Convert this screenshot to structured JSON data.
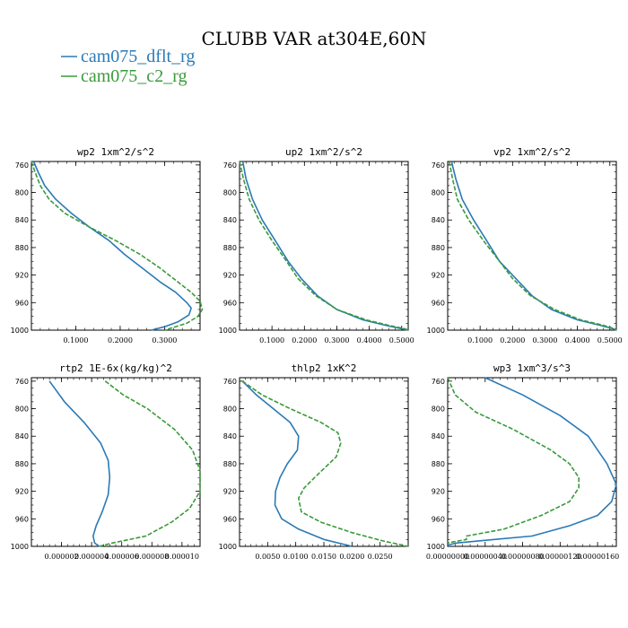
{
  "figure_title": "CLUBB VAR at304E,60N",
  "legend": [
    {
      "label": "cam075_dflt_rg",
      "color": "#2a7ab6",
      "dash": "solid"
    },
    {
      "label": "cam075_c2_rg",
      "color": "#3a9a3a",
      "dash": "dashed"
    }
  ],
  "chart_data": [
    {
      "type": "line",
      "title": "wp2  1xm^2/s^2",
      "ylabel": "",
      "xlabel": "",
      "yinverted": true,
      "ylim": [
        755,
        1000
      ],
      "xlim": [
        0.0,
        0.38
      ],
      "yticks": [
        760,
        800,
        840,
        880,
        920,
        960,
        1000
      ],
      "xticks": [
        0.1,
        0.2,
        0.3
      ],
      "xtick_labels": [
        "0.1000",
        "0.2000",
        "0.3000"
      ],
      "series": [
        {
          "name": "cam075_dflt_rg",
          "points": [
            [
              0.005,
              755
            ],
            [
              0.015,
              770
            ],
            [
              0.03,
              790
            ],
            [
              0.055,
              810
            ],
            [
              0.09,
              830
            ],
            [
              0.13,
              850
            ],
            [
              0.175,
              870
            ],
            [
              0.21,
              890
            ],
            [
              0.25,
              910
            ],
            [
              0.29,
              930
            ],
            [
              0.325,
              945
            ],
            [
              0.35,
              960
            ],
            [
              0.36,
              968
            ],
            [
              0.355,
              978
            ],
            [
              0.33,
              988
            ],
            [
              0.3,
              995
            ],
            [
              0.27,
              1000
            ]
          ]
        },
        {
          "name": "cam075_c2_rg",
          "points": [
            [
              0.0,
              755
            ],
            [
              0.008,
              770
            ],
            [
              0.02,
              790
            ],
            [
              0.04,
              810
            ],
            [
              0.075,
              830
            ],
            [
              0.13,
              850
            ],
            [
              0.19,
              870
            ],
            [
              0.245,
              890
            ],
            [
              0.29,
              910
            ],
            [
              0.33,
              930
            ],
            [
              0.36,
              945
            ],
            [
              0.38,
              958
            ],
            [
              0.385,
              970
            ],
            [
              0.375,
              980
            ],
            [
              0.35,
              990
            ],
            [
              0.3,
              1000
            ]
          ]
        }
      ]
    },
    {
      "type": "line",
      "title": "up2  1xm^2/s^2",
      "ylabel": "",
      "xlabel": "",
      "yinverted": true,
      "ylim": [
        755,
        1000
      ],
      "xlim": [
        0.0,
        0.52
      ],
      "yticks": [
        760,
        800,
        840,
        880,
        920,
        960,
        1000
      ],
      "xticks": [
        0.1,
        0.2,
        0.3,
        0.4,
        0.5
      ],
      "xtick_labels": [
        "0.1000",
        "0.2000",
        "0.3000",
        "0.4000",
        "0.5000"
      ],
      "series": [
        {
          "name": "cam075_dflt_rg",
          "points": [
            [
              0.01,
              755
            ],
            [
              0.02,
              780
            ],
            [
              0.04,
              810
            ],
            [
              0.07,
              840
            ],
            [
              0.11,
              870
            ],
            [
              0.15,
              900
            ],
            [
              0.19,
              925
            ],
            [
              0.24,
              950
            ],
            [
              0.3,
              970
            ],
            [
              0.38,
              985
            ],
            [
              0.45,
              993
            ],
            [
              0.5,
              998
            ],
            [
              0.52,
              1000
            ]
          ]
        },
        {
          "name": "cam075_c2_rg",
          "points": [
            [
              0.0,
              755
            ],
            [
              0.012,
              780
            ],
            [
              0.03,
              810
            ],
            [
              0.06,
              840
            ],
            [
              0.1,
              870
            ],
            [
              0.145,
              900
            ],
            [
              0.18,
              925
            ],
            [
              0.235,
              950
            ],
            [
              0.3,
              970
            ],
            [
              0.39,
              985
            ],
            [
              0.46,
              993
            ],
            [
              0.51,
              998
            ],
            [
              0.52,
              1000
            ]
          ]
        }
      ]
    },
    {
      "type": "line",
      "title": "vp2  1xm^2/s^2",
      "ylabel": "",
      "xlabel": "",
      "yinverted": true,
      "ylim": [
        755,
        1000
      ],
      "xlim": [
        0.0,
        0.52
      ],
      "yticks": [
        760,
        800,
        840,
        880,
        920,
        960,
        1000
      ],
      "xticks": [
        0.1,
        0.2,
        0.3,
        0.4,
        0.5
      ],
      "xtick_labels": [
        "0.1000",
        "0.2000",
        "0.3000",
        "0.4000",
        "0.5000"
      ],
      "series": [
        {
          "name": "cam075_dflt_rg",
          "points": [
            [
              0.012,
              755
            ],
            [
              0.025,
              780
            ],
            [
              0.045,
              810
            ],
            [
              0.08,
              840
            ],
            [
              0.12,
              870
            ],
            [
              0.16,
              900
            ],
            [
              0.21,
              925
            ],
            [
              0.26,
              950
            ],
            [
              0.32,
              970
            ],
            [
              0.4,
              985
            ],
            [
              0.47,
              993
            ],
            [
              0.51,
              998
            ],
            [
              0.52,
              1000
            ]
          ]
        },
        {
          "name": "cam075_c2_rg",
          "points": [
            [
              0.005,
              755
            ],
            [
              0.015,
              780
            ],
            [
              0.03,
              810
            ],
            [
              0.065,
              840
            ],
            [
              0.11,
              870
            ],
            [
              0.16,
              900
            ],
            [
              0.2,
              925
            ],
            [
              0.255,
              950
            ],
            [
              0.33,
              970
            ],
            [
              0.41,
              985
            ],
            [
              0.48,
              993
            ],
            [
              0.515,
              998
            ],
            [
              0.52,
              1000
            ]
          ]
        }
      ]
    },
    {
      "type": "line",
      "title": "rtp2  1E-6x(kg/kg)^2",
      "ylabel": "",
      "xlabel": "",
      "yinverted": true,
      "ylim": [
        755,
        1000
      ],
      "xlim": [
        0.0,
        1.12e-05
      ],
      "yticks": [
        760,
        800,
        840,
        880,
        920,
        960,
        1000
      ],
      "xticks": [
        2e-06,
        4e-06,
        6e-06,
        8e-06,
        1e-05
      ],
      "xtick_labels": [
        "0.000002",
        "0.000004",
        "0.000006",
        "0.000008",
        "0.000010"
      ],
      "series": [
        {
          "name": "cam075_dflt_rg",
          "points": [
            [
              1.2e-06,
              760
            ],
            [
              2.2e-06,
              790
            ],
            [
              3.5e-06,
              820
            ],
            [
              4.6e-06,
              850
            ],
            [
              5.1e-06,
              875
            ],
            [
              5.2e-06,
              900
            ],
            [
              5.1e-06,
              925
            ],
            [
              4.7e-06,
              950
            ],
            [
              4.3e-06,
              970
            ],
            [
              4.1e-06,
              985
            ],
            [
              4.2e-06,
              995
            ],
            [
              4.5e-06,
              1000
            ]
          ]
        },
        {
          "name": "cam075_c2_rg",
          "points": [
            [
              4.9e-06,
              760
            ],
            [
              6.1e-06,
              780
            ],
            [
              7.7e-06,
              800
            ],
            [
              9.5e-06,
              830
            ],
            [
              1.07e-05,
              860
            ],
            [
              1.12e-05,
              890
            ],
            [
              1.12e-05,
              920
            ],
            [
              1.05e-05,
              945
            ],
            [
              9.3e-06,
              965
            ],
            [
              7.6e-06,
              985
            ],
            [
              5.4e-06,
              995
            ],
            [
              4.5e-06,
              1000
            ]
          ]
        }
      ]
    },
    {
      "type": "line",
      "title": "thlp2  1xK^2",
      "ylabel": "",
      "xlabel": "",
      "yinverted": true,
      "ylim": [
        755,
        1000
      ],
      "xlim": [
        0.0,
        0.03
      ],
      "yticks": [
        760,
        800,
        840,
        880,
        920,
        960,
        1000
      ],
      "xticks": [
        0.005,
        0.01,
        0.015,
        0.02,
        0.025
      ],
      "xtick_labels": [
        "0.0050",
        "0.0100",
        "0.0150",
        "0.0200",
        "0.0250"
      ],
      "series": [
        {
          "name": "cam075_dflt_rg",
          "points": [
            [
              0.0005,
              760
            ],
            [
              0.003,
              780
            ],
            [
              0.006,
              800
            ],
            [
              0.009,
              820
            ],
            [
              0.0105,
              840
            ],
            [
              0.0103,
              860
            ],
            [
              0.0085,
              880
            ],
            [
              0.0072,
              900
            ],
            [
              0.0064,
              920
            ],
            [
              0.0063,
              940
            ],
            [
              0.0075,
              960
            ],
            [
              0.0105,
              975
            ],
            [
              0.015,
              990
            ],
            [
              0.02,
              1000
            ]
          ]
        },
        {
          "name": "cam075_c2_rg",
          "points": [
            [
              0.0005,
              760
            ],
            [
              0.004,
              780
            ],
            [
              0.009,
              800
            ],
            [
              0.0145,
              820
            ],
            [
              0.0175,
              835
            ],
            [
              0.018,
              850
            ],
            [
              0.0172,
              870
            ],
            [
              0.014,
              895
            ],
            [
              0.0115,
              915
            ],
            [
              0.0105,
              930
            ],
            [
              0.011,
              950
            ],
            [
              0.0145,
              965
            ],
            [
              0.02,
              980
            ],
            [
              0.0255,
              992
            ],
            [
              0.03,
              1000
            ]
          ]
        }
      ]
    },
    {
      "type": "line",
      "title": "wp3  1xm^3/s^3",
      "ylabel": "",
      "xlabel": "",
      "yinverted": true,
      "ylim": [
        755,
        1000
      ],
      "xlim": [
        0.0,
        1.8e-06
      ],
      "yticks": [
        760,
        800,
        840,
        880,
        920,
        960,
        1000
      ],
      "xticks": [
        0.0,
        4e-07,
        8e-07,
        1.2e-06,
        1.6e-06
      ],
      "xtick_labels": [
        "0.00000000",
        "0.00000040",
        "0.00000080",
        "0.00000120",
        "0.00000160"
      ],
      "series": [
        {
          "name": "cam075_dflt_rg",
          "points": [
            [
              4e-07,
              755
            ],
            [
              8e-07,
              780
            ],
            [
              1.2e-06,
              810
            ],
            [
              1.5e-06,
              840
            ],
            [
              1.6e-06,
              860
            ],
            [
              1.7e-06,
              880
            ],
            [
              1.8e-06,
              910
            ],
            [
              1.75e-06,
              935
            ],
            [
              1.6e-06,
              955
            ],
            [
              1.3e-06,
              970
            ],
            [
              9e-07,
              985
            ],
            [
              5e-07,
              990
            ],
            [
              1e-07,
              995
            ],
            [
              0.0,
              998
            ]
          ]
        },
        {
          "name": "cam075_c2_rg",
          "points": [
            [
              0.0,
              755
            ],
            [
              8e-08,
              780
            ],
            [
              3e-07,
              805
            ],
            [
              7e-07,
              830
            ],
            [
              1.1e-06,
              860
            ],
            [
              1.3e-06,
              880
            ],
            [
              1.4e-06,
              900
            ],
            [
              1.4e-06,
              915
            ],
            [
              1.3e-06,
              935
            ],
            [
              1e-06,
              955
            ],
            [
              6e-07,
              975
            ],
            [
              2e-07,
              985
            ],
            [
              2e-07,
              990
            ],
            [
              0.0,
              995
            ]
          ]
        }
      ]
    }
  ]
}
